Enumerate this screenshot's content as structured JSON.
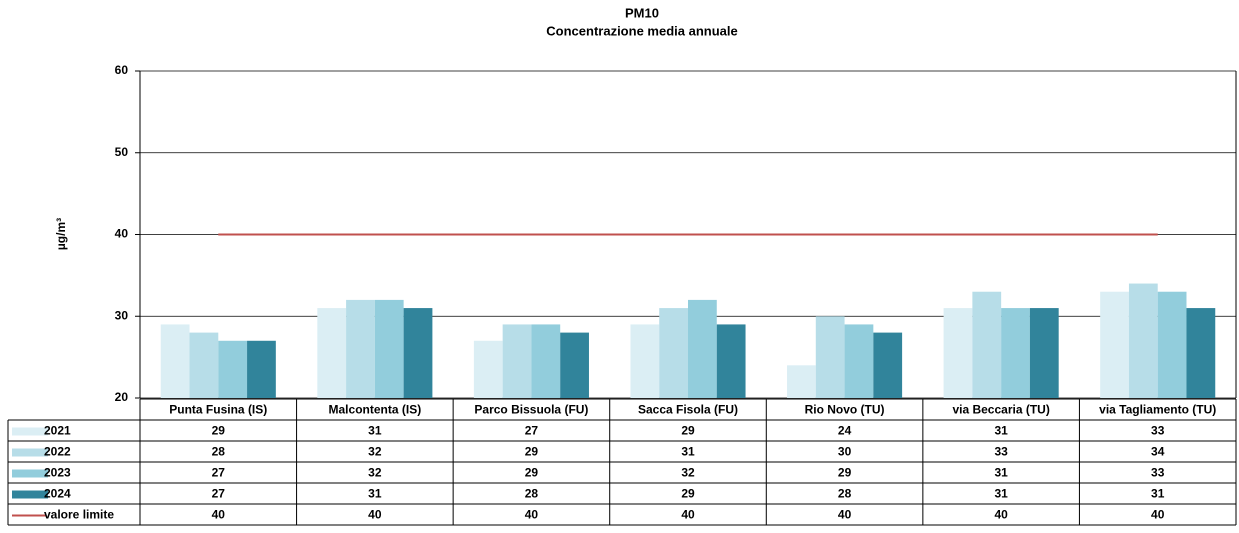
{
  "chart_data": {
    "type": "bar",
    "title": "PM10",
    "subtitle": "Concentrazione media annuale",
    "y_label": "µg/m³",
    "categories": [
      "Punta Fusina (IS)",
      "Malcontenta (IS)",
      "Parco Bissuola (FU)",
      "Sacca Fisola (FU)",
      "Rio Novo (TU)",
      "via Beccaria (TU)",
      "via Tagliamento (TU)"
    ],
    "series": [
      {
        "name": "2021",
        "color": "#dbeef4",
        "values": [
          29,
          31,
          27,
          29,
          24,
          31,
          33
        ]
      },
      {
        "name": "2022",
        "color": "#b7dde8",
        "values": [
          28,
          32,
          29,
          31,
          30,
          33,
          34
        ]
      },
      {
        "name": "2023",
        "color": "#92cddc",
        "values": [
          27,
          32,
          29,
          32,
          29,
          31,
          33
        ]
      },
      {
        "name": "2024",
        "color": "#31849b",
        "values": [
          27,
          31,
          28,
          29,
          28,
          31,
          31
        ]
      },
      {
        "name": "valore limite",
        "type": "line",
        "color": "#c0504d",
        "values": [
          40,
          40,
          40,
          40,
          40,
          40,
          40
        ]
      }
    ],
    "ylim": [
      20,
      60
    ],
    "yticks": [
      20,
      30,
      40,
      50,
      60
    ],
    "grid": true
  }
}
